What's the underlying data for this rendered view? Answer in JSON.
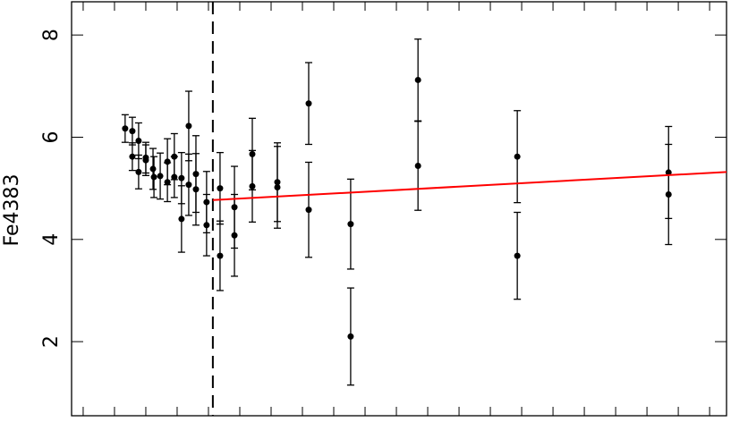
{
  "chart_data": {
    "type": "errorbar-scatter",
    "y_label": "Fe4383",
    "color": "#000000",
    "xlim": [
      -0.37,
      20.54
    ],
    "xticks": [
      0,
      1,
      2,
      3,
      4,
      5,
      6,
      7,
      8,
      9,
      10,
      11,
      12,
      13,
      14,
      15,
      16,
      17,
      18,
      19,
      20
    ],
    "ylim": [
      0.55,
      8.65
    ],
    "yticks": [
      2,
      4,
      6,
      8
    ],
    "x": [
      1.34,
      1.57,
      1.57,
      1.77,
      1.77,
      2.0,
      2.0,
      2.23,
      2.26,
      2.46,
      2.69,
      2.69,
      2.91,
      2.91,
      3.14,
      3.14,
      3.37,
      3.37,
      3.6,
      3.6,
      3.94,
      3.94,
      4.37,
      4.37,
      4.83,
      4.83,
      5.4,
      5.4,
      6.2,
      6.2,
      7.2,
      7.2,
      8.54,
      8.54,
      10.69,
      10.69,
      13.86,
      13.86,
      18.69,
      18.69
    ],
    "values": [
      6.17,
      6.12,
      5.62,
      5.93,
      5.32,
      5.6,
      5.55,
      5.38,
      5.22,
      5.24,
      5.52,
      5.12,
      5.62,
      5.22,
      5.2,
      4.4,
      6.22,
      5.07,
      5.28,
      4.98,
      4.73,
      4.28,
      5.0,
      3.68,
      4.63,
      4.08,
      5.67,
      5.04,
      5.12,
      5.02,
      6.66,
      4.58,
      4.3,
      2.1,
      7.12,
      5.44,
      5.62,
      3.68,
      5.31,
      4.88
    ],
    "errors": [
      0.27,
      0.27,
      0.27,
      0.35,
      0.33,
      0.3,
      0.3,
      0.4,
      0.4,
      0.45,
      0.45,
      0.38,
      0.45,
      0.4,
      0.5,
      0.65,
      0.68,
      0.6,
      0.75,
      0.7,
      0.6,
      0.6,
      0.7,
      0.68,
      0.8,
      0.8,
      0.7,
      0.7,
      0.77,
      0.8,
      0.8,
      0.93,
      0.88,
      0.95,
      0.8,
      0.87,
      0.9,
      0.85,
      0.9,
      0.98
    ],
    "vline": 4.14,
    "fit": {
      "color": "#ff0000",
      "x": [
        4.14,
        20.54
      ],
      "y": [
        4.77,
        5.32
      ]
    }
  }
}
